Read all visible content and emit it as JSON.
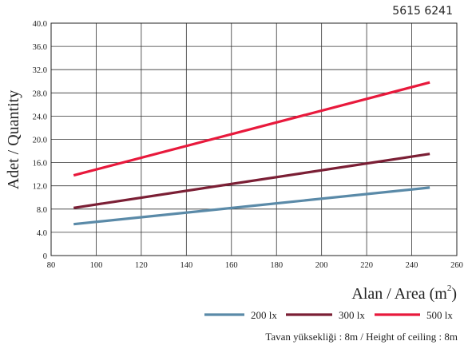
{
  "product_code": "5615 6241",
  "note": "Tavan yüksekliği : 8m / Height of ceiling : 8m",
  "chart_data": {
    "type": "line",
    "xlabel": "Alan / Area (m",
    "xlabel_sup": "2",
    "xlabel_close": ")",
    "ylabel": "Adet / Quantity",
    "xlim": [
      80,
      260
    ],
    "ylim": [
      0,
      40
    ],
    "x_ticks": [
      80,
      100,
      120,
      140,
      160,
      180,
      200,
      220,
      240,
      260
    ],
    "y_ticks": [
      0,
      4,
      8,
      12,
      16,
      20,
      24,
      28,
      32,
      36,
      40
    ],
    "y_tick_labels": [
      "0",
      "4.0",
      "8.0",
      "12.0",
      "16.0",
      "20.0",
      "24.0",
      "28.0",
      "32.0",
      "36.0",
      "40.0"
    ],
    "grid": true,
    "legend_position": "bottom-right",
    "series": [
      {
        "name": "200 lx",
        "color": "#5a8aa8",
        "x": [
          90,
          248
        ],
        "y": [
          5.4,
          11.7
        ]
      },
      {
        "name": "300 lx",
        "color": "#7b1f35",
        "x": [
          90,
          248
        ],
        "y": [
          8.2,
          17.5
        ]
      },
      {
        "name": "500 lx",
        "color": "#e8193c",
        "x": [
          90,
          248
        ],
        "y": [
          13.8,
          29.8
        ]
      }
    ]
  }
}
